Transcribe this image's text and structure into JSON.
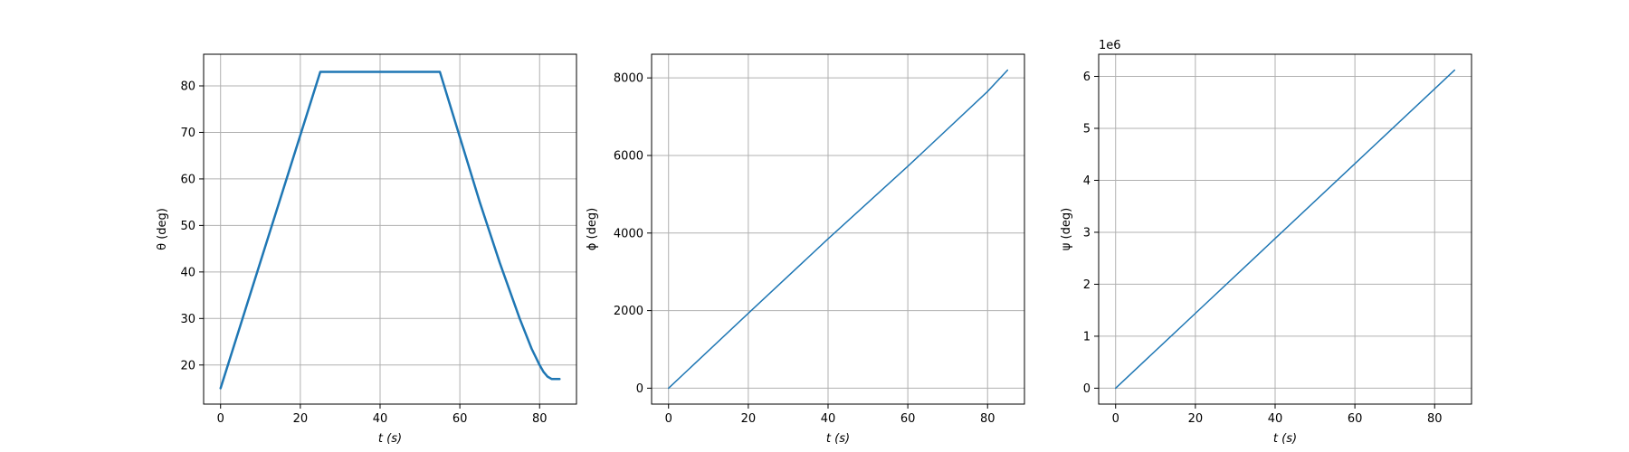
{
  "chart_data": [
    {
      "type": "line",
      "xlabel": "t (s)",
      "ylabel": "θ (deg)",
      "xlim": [
        -4.25,
        89.25
      ],
      "ylim": [
        11.6,
        86.8
      ],
      "xticks": [
        0,
        20,
        40,
        60,
        80
      ],
      "yticks": [
        20,
        30,
        40,
        50,
        60,
        70,
        80
      ],
      "multiplier": "",
      "grid": true,
      "line_color": "#1f77b4",
      "series": [
        {
          "x": [
            0,
            25,
            55,
            60,
            65,
            70,
            75,
            78,
            80,
            81,
            82,
            83,
            84,
            85
          ],
          "y": [
            15,
            83,
            83,
            69,
            55,
            42,
            30,
            23.5,
            20,
            18.5,
            17.5,
            17,
            17,
            17
          ]
        }
      ]
    },
    {
      "type": "line",
      "xlabel": "t (s)",
      "ylabel": "ϕ (deg)",
      "xlim": [
        -4.25,
        89.25
      ],
      "ylim": [
        -410,
        8610
      ],
      "xticks": [
        0,
        20,
        40,
        60,
        80
      ],
      "yticks": [
        0,
        2000,
        4000,
        6000,
        8000
      ],
      "multiplier": "",
      "grid": true,
      "line_color": "#1f77b4",
      "series": [
        {
          "x": [
            0,
            20,
            40,
            60,
            80,
            85
          ],
          "y": [
            0,
            1930,
            3850,
            5720,
            7650,
            8200
          ]
        }
      ]
    },
    {
      "type": "line",
      "xlabel": "t (s)",
      "ylabel": "ψ (deg)",
      "xlim": [
        -4.25,
        89.25
      ],
      "ylim": [
        -0.306,
        6.426
      ],
      "xticks": [
        0,
        20,
        40,
        60,
        80
      ],
      "yticks": [
        0,
        1,
        2,
        3,
        4,
        5,
        6
      ],
      "multiplier": "1e6",
      "grid": true,
      "line_color": "#1f77b4",
      "series": [
        {
          "x": [
            0,
            20,
            40,
            60,
            80,
            85
          ],
          "y": [
            0,
            1.44,
            2.88,
            4.32,
            5.76,
            6.12
          ]
        }
      ]
    }
  ]
}
